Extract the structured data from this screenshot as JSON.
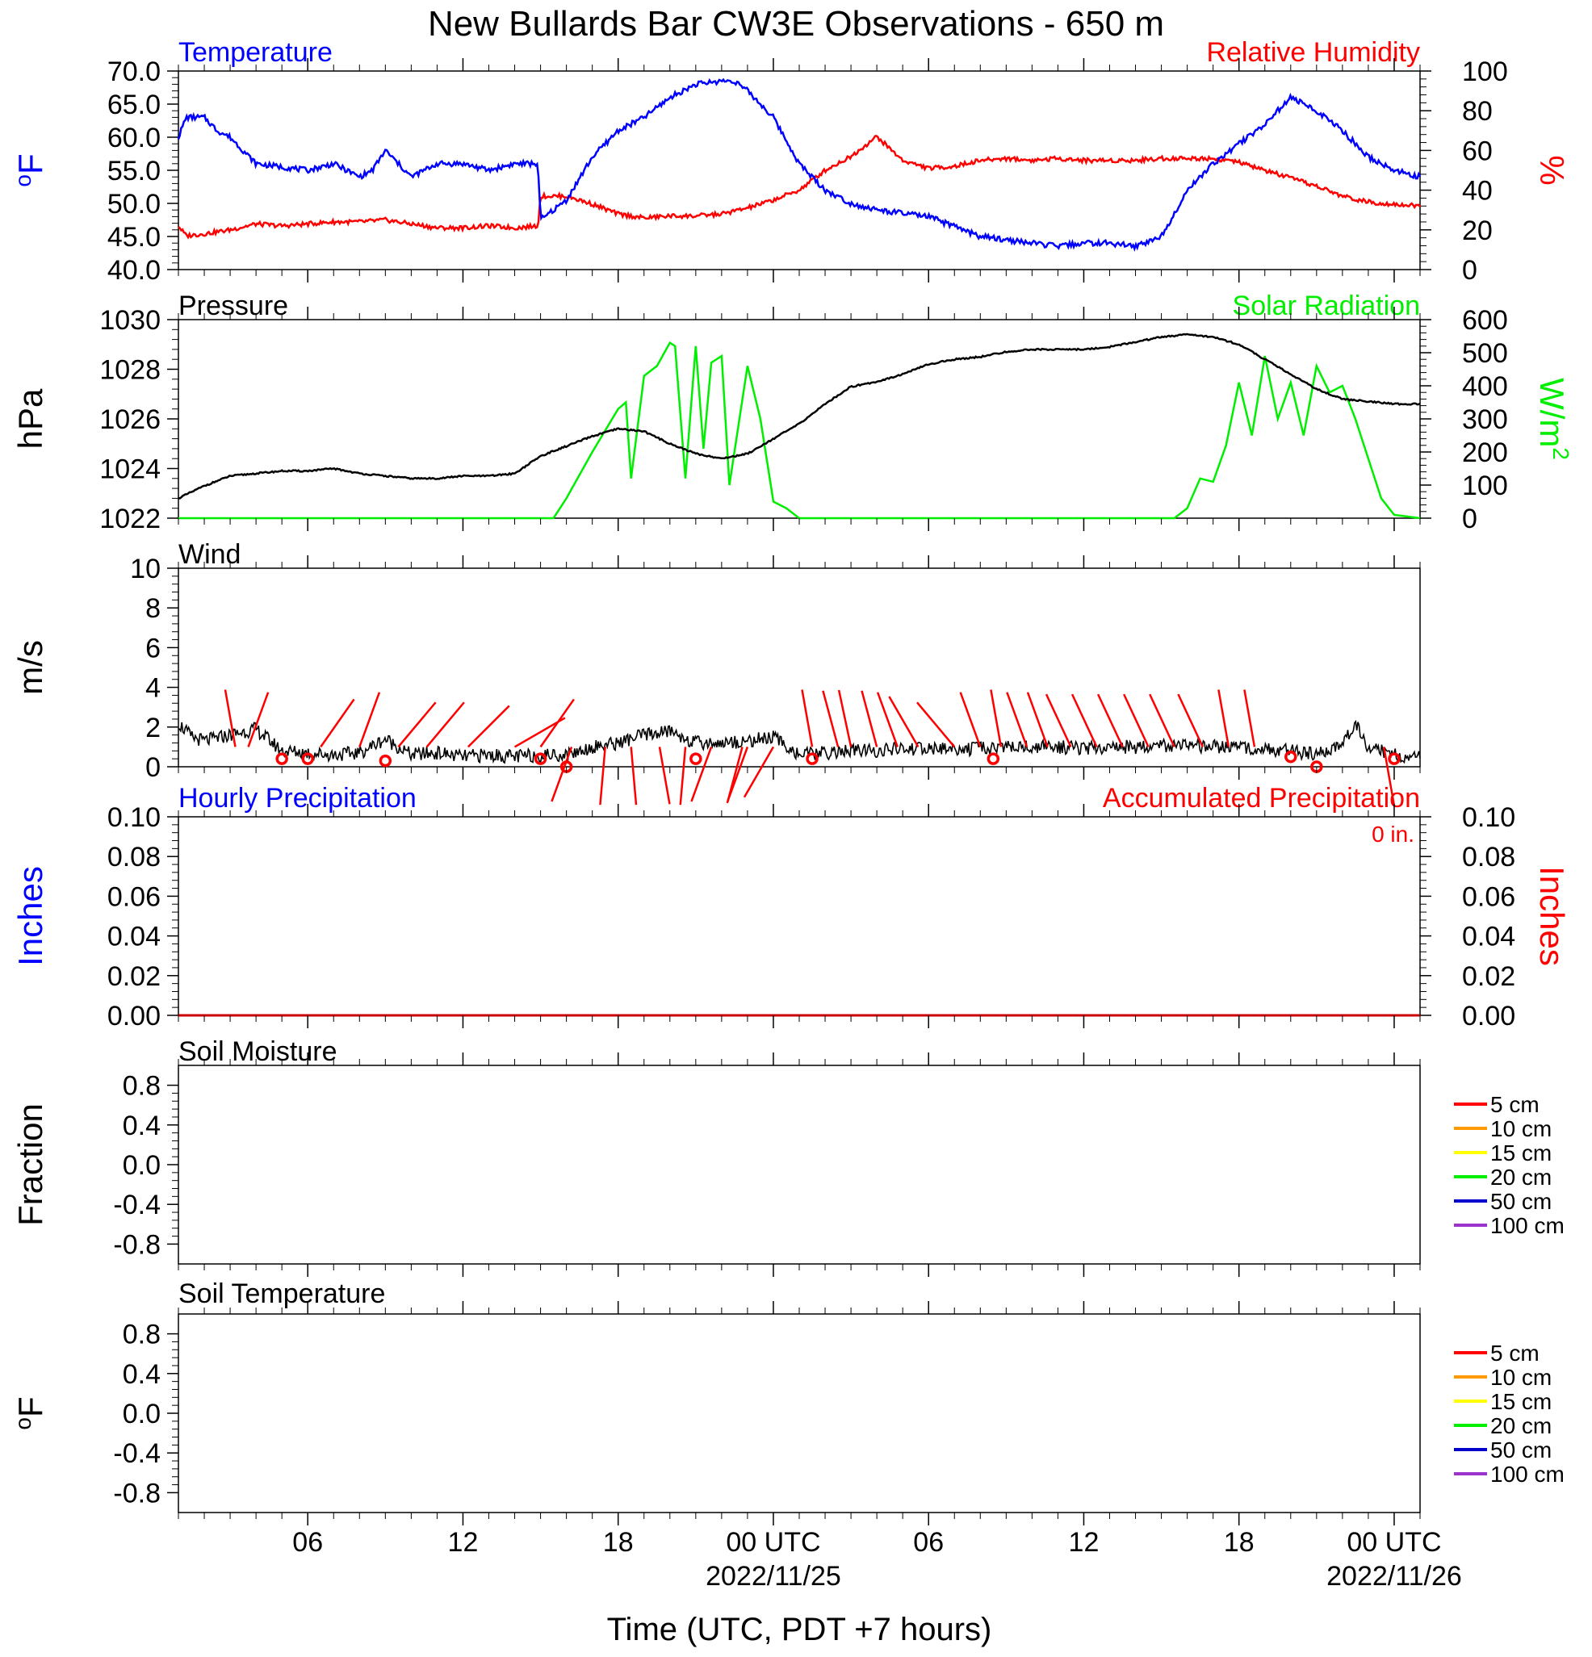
{
  "title": "New Bullards Bar CW3E Observations - 650 m",
  "xlabel": "Time (UTC, PDT +7 hours)",
  "x_axis": {
    "range_hours": [
      0,
      48
    ],
    "ticks": [
      {
        "h": 5,
        "label": "06",
        "date": ""
      },
      {
        "h": 11,
        "label": "12",
        "date": ""
      },
      {
        "h": 17,
        "label": "18",
        "date": ""
      },
      {
        "h": 23,
        "label": "00 UTC",
        "date": "2022/11/25"
      },
      {
        "h": 29,
        "label": "06",
        "date": ""
      },
      {
        "h": 35,
        "label": "12",
        "date": ""
      },
      {
        "h": 41,
        "label": "18",
        "date": ""
      },
      {
        "h": 47,
        "label": "00 UTC",
        "date": "2022/11/26"
      }
    ]
  },
  "panels": {
    "temp_rh": {
      "left_title": "Temperature",
      "right_title": "Relative Humidity",
      "left_unit": "oF",
      "right_unit": "%"
    },
    "pressure_solar": {
      "left_title": "Pressure",
      "right_title": "Solar Radiation",
      "left_unit": "hPa",
      "right_unit": "W/m2"
    },
    "wind": {
      "left_title": "Wind",
      "left_unit": "m/s"
    },
    "precip": {
      "left_title": "Hourly Precipitation",
      "right_title": "Accumulated Precipitation",
      "annotation": "0 in.",
      "left_unit": "Inches",
      "right_unit": "Inches"
    },
    "soil_moisture": {
      "left_title": "Soil Moisture",
      "left_unit": "Fraction",
      "legend": [
        "5 cm",
        "10 cm",
        "15 cm",
        "20 cm",
        "50 cm",
        "100 cm"
      ]
    },
    "soil_temperature": {
      "left_title": "Soil Temperature",
      "left_unit": "oF",
      "legend": [
        "5 cm",
        "10 cm",
        "15 cm",
        "20 cm",
        "50 cm",
        "100 cm"
      ]
    }
  },
  "colors": {
    "temperature": "#0000ff",
    "humidity": "#ff0000",
    "pressure": "#000000",
    "solar": "#00ee00",
    "wind_speed": "#000000",
    "wind_barb": "#ff0000",
    "hourly_precip": "#0000ff",
    "accum_precip": "#cc0000",
    "soil_levels": [
      "#ff0000",
      "#ff9900",
      "#ffff00",
      "#00ee00",
      "#0000cc",
      "#9933cc"
    ]
  },
  "chart_data": [
    {
      "type": "line",
      "id": "temp_rh",
      "series": [
        {
          "name": "Temperature",
          "axis": "left",
          "x": [
            0,
            0.3,
            1,
            1.5,
            2,
            3,
            4,
            5,
            6,
            7,
            7.5,
            8,
            9,
            10,
            11,
            12,
            13,
            13.9,
            14,
            14.5,
            15,
            16,
            17,
            18,
            19,
            20,
            21,
            21.5,
            22,
            23,
            24,
            25,
            26,
            27,
            28,
            29,
            30,
            31,
            32,
            33,
            34,
            35,
            36,
            37,
            38,
            39,
            40,
            41,
            42,
            43,
            44,
            45,
            46,
            47,
            48
          ],
          "y": [
            60,
            63,
            63,
            61,
            60,
            56,
            55.5,
            55,
            56,
            54,
            55,
            58,
            54,
            56,
            56,
            55,
            56,
            56,
            47.5,
            49,
            50.5,
            57,
            61,
            63,
            66,
            68,
            68.5,
            68.5,
            67,
            63,
            56,
            52,
            50,
            49,
            48.5,
            48,
            46.5,
            45,
            44.5,
            44,
            43.5,
            44,
            44,
            43.5,
            45,
            52,
            56,
            59,
            62,
            66,
            64,
            61,
            57,
            55,
            54
          ]
        },
        {
          "name": "Relative Humidity",
          "axis": "right",
          "x": [
            0,
            0.3,
            1,
            2,
            3,
            4,
            5,
            6,
            7,
            8,
            9,
            10,
            11,
            12,
            13,
            13.9,
            14,
            15,
            16,
            17,
            18,
            19,
            20,
            21,
            22,
            23,
            24,
            25,
            26,
            27,
            28,
            29,
            30,
            31,
            32,
            33,
            34,
            35,
            36,
            37,
            38,
            39,
            40,
            41,
            42,
            43,
            44,
            45,
            46,
            47,
            48
          ],
          "y": [
            22,
            17,
            18,
            20,
            23,
            22,
            23,
            24,
            24,
            25,
            23,
            21,
            21,
            22,
            21,
            22,
            37,
            37,
            33,
            28,
            26,
            27,
            27,
            28,
            31,
            35,
            40,
            50,
            57,
            67,
            55,
            51,
            52,
            55,
            56,
            55,
            56,
            55,
            55,
            55,
            56,
            56,
            56,
            54,
            50,
            46,
            42,
            37,
            34,
            33,
            32
          ]
        }
      ],
      "ylim_left": [
        40,
        70
      ],
      "ylim_right": [
        0,
        100
      ],
      "yticks_left": [
        "40.0",
        "45.0",
        "50.0",
        "55.0",
        "60.0",
        "65.0",
        "70.0"
      ],
      "yticks_right": [
        "0",
        "20",
        "40",
        "60",
        "80",
        "100"
      ]
    },
    {
      "type": "line",
      "id": "pressure_solar",
      "series": [
        {
          "name": "Pressure",
          "axis": "left",
          "x": [
            0,
            1,
            2,
            3,
            4,
            5,
            6,
            7,
            8,
            9,
            10,
            11,
            12,
            13,
            14,
            15,
            16,
            17,
            18,
            19,
            20,
            21,
            22,
            23,
            24,
            25,
            26,
            27,
            28,
            29,
            30,
            31,
            32,
            33,
            34,
            35,
            36,
            37,
            38,
            39,
            40,
            41,
            42,
            43,
            44,
            45,
            46,
            47,
            48
          ],
          "y": [
            1022.8,
            1023.3,
            1023.7,
            1023.8,
            1023.9,
            1023.9,
            1024,
            1023.8,
            1023.7,
            1023.6,
            1023.6,
            1023.7,
            1023.7,
            1023.8,
            1024.5,
            1024.9,
            1025.3,
            1025.6,
            1025.5,
            1025,
            1024.6,
            1024.4,
            1024.6,
            1025.2,
            1025.8,
            1026.6,
            1027.3,
            1027.5,
            1027.8,
            1028.2,
            1028.4,
            1028.5,
            1028.7,
            1028.8,
            1028.8,
            1028.8,
            1028.9,
            1029.1,
            1029.3,
            1029.4,
            1029.3,
            1029,
            1028.4,
            1027.8,
            1027.2,
            1026.8,
            1026.7,
            1026.6,
            1026.6
          ]
        },
        {
          "name": "Solar Radiation",
          "axis": "right",
          "x": [
            0,
            14.5,
            15,
            16,
            17,
            17.3,
            17.5,
            18,
            18.5,
            19,
            19.2,
            19.6,
            20,
            20.3,
            20.6,
            21,
            21.3,
            22,
            22.5,
            23,
            23.5,
            24,
            30,
            34,
            38.5,
            39,
            39.5,
            40,
            40.5,
            41,
            41.5,
            42,
            42.5,
            43,
            43.5,
            44,
            44.5,
            45,
            45.5,
            46,
            46.5,
            47,
            48
          ],
          "y": [
            0,
            0,
            60,
            200,
            330,
            350,
            120,
            430,
            460,
            530,
            520,
            120,
            520,
            210,
            470,
            490,
            100,
            460,
            300,
            50,
            30,
            0,
            0,
            0,
            0,
            30,
            120,
            110,
            220,
            410,
            250,
            490,
            300,
            410,
            250,
            460,
            380,
            400,
            300,
            180,
            60,
            10,
            0
          ]
        }
      ],
      "ylim_left": [
        1022,
        1030
      ],
      "ylim_right": [
        0,
        600
      ],
      "yticks_left": [
        "1022",
        "1024",
        "1026",
        "1028",
        "1030"
      ],
      "yticks_right": [
        "0",
        "100",
        "200",
        "300",
        "400",
        "500",
        "600"
      ]
    },
    {
      "type": "line",
      "id": "wind",
      "series": [
        {
          "name": "Wind",
          "axis": "left",
          "x": [
            0,
            0.5,
            1,
            2,
            3,
            4,
            5,
            6,
            7,
            8,
            9,
            10,
            11,
            12,
            13,
            14,
            15,
            16,
            17,
            18,
            19,
            20,
            21,
            22,
            23,
            24,
            25,
            26,
            27,
            28,
            29,
            30,
            31,
            32,
            33,
            34,
            35,
            36,
            37,
            38,
            39,
            40,
            41,
            42,
            43,
            44,
            44.5,
            45,
            45.5,
            46,
            47,
            48
          ],
          "y": [
            2.2,
            1.5,
            1.3,
            1.6,
            1.9,
            0.8,
            0.7,
            0.6,
            0.7,
            1.4,
            0.6,
            0.7,
            0.5,
            0.6,
            0.5,
            0.6,
            0.6,
            1,
            1.2,
            1.6,
            1.8,
            1.2,
            1.2,
            1.3,
            1.5,
            0.6,
            0.7,
            0.8,
            0.8,
            0.9,
            0.9,
            0.9,
            0.9,
            1,
            1,
            1,
            0.9,
            1,
            1,
            1.1,
            1,
            1,
            1,
            0.9,
            0.8,
            0.6,
            0.8,
            1.2,
            2.2,
            1,
            0.6,
            0.5
          ]
        },
        {
          "name": "Wind barbs",
          "axis": "left",
          "x": [
            2.2,
            2.7,
            5.5,
            7,
            8.5,
            9.6,
            11.2,
            13,
            14,
            15.2,
            16.5,
            17.5,
            18.6,
            19.6,
            20.6,
            21.8,
            22,
            23,
            24.5,
            25.5,
            26,
            27,
            27.8,
            28.6,
            30,
            31,
            31.8,
            32.8,
            33.6,
            34.5,
            35.5,
            36.5,
            37.5,
            38.5,
            39.6,
            40.6,
            41.6,
            46.6
          ],
          "y": [
            1,
            1,
            1,
            1,
            1,
            1,
            1,
            1,
            1,
            1,
            1,
            1,
            1,
            1,
            1,
            1,
            1,
            1,
            1,
            1,
            1,
            1,
            1,
            1,
            1,
            1,
            1,
            1,
            1,
            1,
            1,
            1,
            1,
            1,
            1,
            1,
            1,
            1
          ]
        },
        {
          "name": "Calm circles",
          "axis": "left",
          "x": [
            4,
            5,
            8,
            14,
            15,
            20,
            24.5,
            31.5,
            43,
            44,
            47
          ],
          "y": [
            0.4,
            0.4,
            0.3,
            0.4,
            0,
            0.4,
            0.4,
            0.4,
            0.5,
            0,
            0.4
          ]
        }
      ],
      "ylim_left": [
        0,
        10
      ],
      "yticks_left": [
        "0",
        "2",
        "4",
        "6",
        "8",
        "10"
      ]
    },
    {
      "type": "line",
      "id": "precip",
      "series": [
        {
          "name": "Hourly Precipitation",
          "axis": "left",
          "x": [
            0,
            48
          ],
          "y": [
            0,
            0
          ]
        },
        {
          "name": "Accumulated Precipitation",
          "axis": "right",
          "x": [
            0,
            48
          ],
          "y": [
            0,
            0
          ]
        }
      ],
      "ylim_left": [
        0,
        0.1
      ],
      "ylim_right": [
        0,
        0.1
      ],
      "yticks_left": [
        "0.00",
        "0.02",
        "0.04",
        "0.06",
        "0.08",
        "0.10"
      ],
      "yticks_right": [
        "0.00",
        "0.02",
        "0.04",
        "0.06",
        "0.08",
        "0.10"
      ]
    },
    {
      "type": "line",
      "id": "soil_moisture",
      "series": [],
      "ylim_left": [
        -1,
        1
      ],
      "yticks_left": [
        "-0.8",
        "-0.4",
        "0.0",
        "0.4",
        "0.8"
      ]
    },
    {
      "type": "line",
      "id": "soil_temperature",
      "series": [],
      "ylim_left": [
        -1,
        1
      ],
      "yticks_left": [
        "-0.8",
        "-0.4",
        "0.0",
        "0.4",
        "0.8"
      ]
    }
  ]
}
